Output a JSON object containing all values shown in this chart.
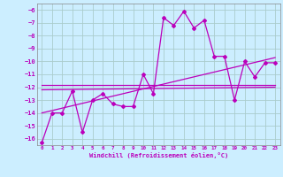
{
  "xlabel": "Windchill (Refroidissement éolien,°C)",
  "background_color": "#cceeff",
  "grid_color": "#aacccc",
  "line_color": "#bb00bb",
  "spine_color": "#888888",
  "xlim": [
    -0.5,
    23.5
  ],
  "ylim": [
    -16.5,
    -5.5
  ],
  "yticks": [
    -16,
    -15,
    -14,
    -13,
    -12,
    -11,
    -10,
    -9,
    -8,
    -7,
    -6
  ],
  "xticks": [
    0,
    1,
    2,
    3,
    4,
    5,
    6,
    7,
    8,
    9,
    10,
    11,
    12,
    13,
    14,
    15,
    16,
    17,
    18,
    19,
    20,
    21,
    22,
    23
  ],
  "series1_x": [
    0,
    1,
    2,
    3,
    4,
    5,
    6,
    7,
    8,
    9,
    10,
    11,
    12,
    13,
    14,
    15,
    16,
    17,
    18,
    19,
    20,
    21,
    22,
    23
  ],
  "series1_y": [
    -16.3,
    -14.0,
    -14.0,
    -12.3,
    -15.5,
    -13.0,
    -12.5,
    -13.3,
    -13.5,
    -13.5,
    -11.0,
    -12.5,
    -6.6,
    -7.2,
    -6.1,
    -7.4,
    -6.8,
    -9.6,
    -9.6,
    -13.0,
    -10.0,
    -11.2,
    -10.1,
    -10.1
  ],
  "series2_x": [
    0,
    23
  ],
  "series2_y": [
    -14.0,
    -9.7
  ],
  "series3_x": [
    0,
    23
  ],
  "series3_y": [
    -11.8,
    -11.8
  ],
  "series4_x": [
    0,
    23
  ],
  "series4_y": [
    -12.2,
    -12.0
  ]
}
